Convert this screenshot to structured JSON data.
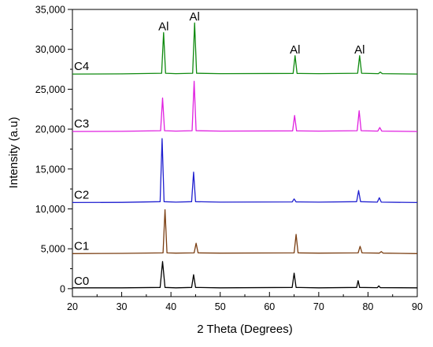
{
  "chart_data": {
    "type": "line",
    "title": "",
    "xlabel": "2 Theta (Degrees)",
    "ylabel": "Intensity (a.u)",
    "xlim": [
      20,
      90
    ],
    "ylim": [
      -1000,
      35000
    ],
    "x_ticks": [
      20,
      30,
      40,
      50,
      60,
      70,
      80,
      90
    ],
    "y_ticks": [
      0,
      5000,
      10000,
      15000,
      20000,
      25000,
      30000,
      35000
    ],
    "x_tick_labels": [
      "20",
      "30",
      "40",
      "50",
      "60",
      "70",
      "80",
      "90"
    ],
    "y_tick_labels": [
      "0",
      "5,000",
      "10,000",
      "15,000",
      "20,000",
      "25,000",
      "30,000",
      "35,000"
    ],
    "grid": false,
    "series": [
      {
        "name": "C0",
        "color": "#000000",
        "baseline": 0,
        "x": [
          20,
          30,
          37.8,
          38.3,
          38.8,
          41,
          44.2,
          44.6,
          45,
          50,
          64.6,
          65.0,
          65.4,
          70,
          77.7,
          78.0,
          78.3,
          81.9,
          82.2,
          82.5,
          90
        ],
        "y": [
          100,
          100,
          150,
          3400,
          150,
          100,
          150,
          1750,
          150,
          100,
          150,
          1950,
          150,
          100,
          150,
          1000,
          150,
          120,
          350,
          120,
          100
        ]
      },
      {
        "name": "C1",
        "color": "#7a3e12",
        "baseline": 4400,
        "x": [
          20,
          30,
          38.4,
          38.8,
          39.2,
          41,
          44.7,
          45.1,
          45.5,
          50,
          65.0,
          65.4,
          65.8,
          70,
          78.0,
          78.4,
          78.8,
          82.3,
          82.7,
          83.1,
          90
        ],
        "y": [
          4400,
          4420,
          4480,
          9900,
          4480,
          4450,
          4480,
          5700,
          4480,
          4450,
          4480,
          6800,
          4480,
          4450,
          4480,
          5300,
          4480,
          4450,
          4650,
          4450,
          4400
        ]
      },
      {
        "name": "C2",
        "color": "#1f1fd0",
        "baseline": 10800,
        "x": [
          20,
          30,
          37.8,
          38.2,
          38.6,
          41,
          44.2,
          44.6,
          45.0,
          50,
          64.6,
          65.0,
          65.4,
          70,
          77.7,
          78.1,
          78.5,
          81.9,
          82.3,
          82.7,
          90
        ],
        "y": [
          10800,
          10820,
          10900,
          18800,
          10900,
          10850,
          10900,
          14600,
          10900,
          10850,
          10880,
          11250,
          10880,
          10850,
          10900,
          12300,
          10900,
          10850,
          11400,
          10850,
          10800
        ]
      },
      {
        "name": "C3",
        "color": "#e020e0",
        "baseline": 19700,
        "x": [
          20,
          30,
          37.9,
          38.3,
          38.7,
          41,
          44.3,
          44.7,
          45.1,
          50,
          64.7,
          65.1,
          65.5,
          70,
          77.8,
          78.2,
          78.6,
          82.0,
          82.4,
          82.8,
          90
        ],
        "y": [
          19700,
          19720,
          19800,
          23900,
          19800,
          19750,
          19800,
          26000,
          19800,
          19750,
          19780,
          21700,
          19780,
          19750,
          19800,
          22300,
          19800,
          19750,
          20200,
          19750,
          19700
        ]
      },
      {
        "name": "C4",
        "color": "#0f8a0f",
        "baseline": 26900,
        "x": [
          20,
          30,
          38.1,
          38.5,
          38.9,
          41,
          44.4,
          44.8,
          45.2,
          50,
          64.8,
          65.2,
          65.6,
          70,
          77.9,
          78.3,
          78.7,
          82.1,
          82.5,
          82.9,
          90
        ],
        "y": [
          26900,
          26920,
          27000,
          32100,
          27000,
          26950,
          27000,
          33300,
          27000,
          26950,
          26980,
          29200,
          26980,
          26950,
          27000,
          29200,
          27000,
          26950,
          27150,
          26950,
          26900
        ]
      }
    ],
    "annotations": [
      {
        "text": "Al",
        "x": 38.5,
        "y": 32400
      },
      {
        "text": "Al",
        "x": 44.8,
        "y": 33600
      },
      {
        "text": "Al",
        "x": 65.2,
        "y": 29500
      },
      {
        "text": "Al",
        "x": 78.3,
        "y": 29500
      }
    ]
  }
}
